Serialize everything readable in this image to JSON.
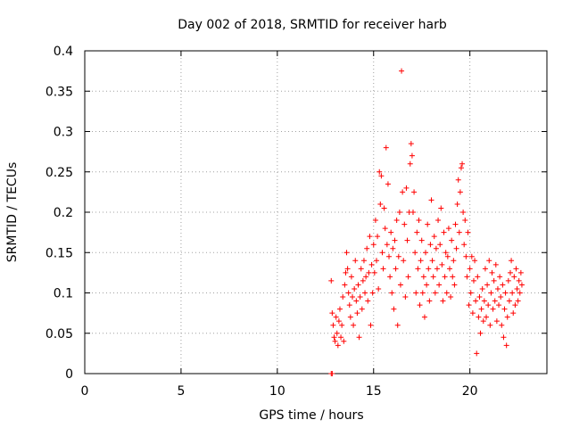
{
  "chart_data": {
    "type": "scatter",
    "title": "Day 002 of 2018, SRMTID for receiver harb",
    "xlabel": "GPS time / hours",
    "ylabel": "SRMTID / TECUs",
    "xlim": [
      0,
      24
    ],
    "ylim": [
      0,
      0.4
    ],
    "xticks": [
      0,
      5,
      10,
      15,
      20
    ],
    "xtick_labels": [
      "0",
      "5",
      "10",
      "15",
      "20"
    ],
    "yticks": [
      0,
      0.05,
      0.1,
      0.15,
      0.2,
      0.25,
      0.3,
      0.35,
      0.4
    ],
    "ytick_labels": [
      "0",
      "0.05",
      "0.1",
      "0.15",
      "0.2",
      "0.25",
      "0.3",
      "0.35",
      "0.4"
    ],
    "grid": true,
    "marker": "+",
    "color": "#ff0000",
    "series": [
      {
        "name": "SRMTID",
        "points": [
          [
            12.8,
            0.0
          ],
          [
            12.85,
            0.0
          ],
          [
            12.8,
            0.115
          ],
          [
            12.85,
            0.075
          ],
          [
            12.9,
            0.06
          ],
          [
            12.95,
            0.045
          ],
          [
            13.0,
            0.04
          ],
          [
            13.05,
            0.07
          ],
          [
            13.1,
            0.05
          ],
          [
            13.15,
            0.035
          ],
          [
            13.2,
            0.065
          ],
          [
            13.25,
            0.08
          ],
          [
            13.3,
            0.045
          ],
          [
            13.35,
            0.06
          ],
          [
            13.4,
            0.095
          ],
          [
            13.45,
            0.04
          ],
          [
            13.5,
            0.11
          ],
          [
            13.55,
            0.125
          ],
          [
            13.6,
            0.15
          ],
          [
            13.65,
            0.13
          ],
          [
            13.7,
            0.1
          ],
          [
            13.75,
            0.085
          ],
          [
            13.8,
            0.07
          ],
          [
            13.85,
            0.12
          ],
          [
            13.9,
            0.095
          ],
          [
            13.95,
            0.06
          ],
          [
            14.0,
            0.105
          ],
          [
            14.05,
            0.14
          ],
          [
            14.1,
            0.09
          ],
          [
            14.15,
            0.075
          ],
          [
            14.2,
            0.11
          ],
          [
            14.25,
            0.045
          ],
          [
            14.3,
            0.095
          ],
          [
            14.35,
            0.13
          ],
          [
            14.4,
            0.08
          ],
          [
            14.45,
            0.115
          ],
          [
            14.5,
            0.14
          ],
          [
            14.55,
            0.1
          ],
          [
            14.6,
            0.12
          ],
          [
            14.65,
            0.155
          ],
          [
            14.7,
            0.09
          ],
          [
            14.75,
            0.125
          ],
          [
            14.8,
            0.17
          ],
          [
            14.85,
            0.06
          ],
          [
            14.9,
            0.135
          ],
          [
            14.95,
            0.1
          ],
          [
            15.0,
            0.16
          ],
          [
            15.05,
            0.125
          ],
          [
            15.1,
            0.19
          ],
          [
            15.15,
            0.14
          ],
          [
            15.2,
            0.17
          ],
          [
            15.25,
            0.105
          ],
          [
            15.3,
            0.25
          ],
          [
            15.35,
            0.21
          ],
          [
            15.4,
            0.245
          ],
          [
            15.45,
            0.15
          ],
          [
            15.5,
            0.13
          ],
          [
            15.55,
            0.205
          ],
          [
            15.6,
            0.18
          ],
          [
            15.65,
            0.28
          ],
          [
            15.7,
            0.16
          ],
          [
            15.75,
            0.235
          ],
          [
            15.8,
            0.145
          ],
          [
            15.85,
            0.12
          ],
          [
            15.9,
            0.175
          ],
          [
            15.95,
            0.1
          ],
          [
            16.0,
            0.155
          ],
          [
            16.05,
            0.08
          ],
          [
            16.1,
            0.165
          ],
          [
            16.15,
            0.13
          ],
          [
            16.2,
            0.19
          ],
          [
            16.25,
            0.06
          ],
          [
            16.3,
            0.145
          ],
          [
            16.35,
            0.2
          ],
          [
            16.4,
            0.11
          ],
          [
            16.45,
            0.375
          ],
          [
            16.5,
            0.225
          ],
          [
            16.55,
            0.14
          ],
          [
            16.6,
            0.185
          ],
          [
            16.65,
            0.095
          ],
          [
            16.7,
            0.23
          ],
          [
            16.75,
            0.165
          ],
          [
            16.8,
            0.12
          ],
          [
            16.85,
            0.2
          ],
          [
            16.9,
            0.26
          ],
          [
            16.95,
            0.285
          ],
          [
            17.0,
            0.27
          ],
          [
            17.05,
            0.2
          ],
          [
            17.1,
            0.225
          ],
          [
            17.15,
            0.15
          ],
          [
            17.2,
            0.1
          ],
          [
            17.25,
            0.175
          ],
          [
            17.3,
            0.13
          ],
          [
            17.35,
            0.19
          ],
          [
            17.4,
            0.085
          ],
          [
            17.45,
            0.14
          ],
          [
            17.5,
            0.165
          ],
          [
            17.55,
            0.1
          ],
          [
            17.6,
            0.12
          ],
          [
            17.65,
            0.07
          ],
          [
            17.7,
            0.15
          ],
          [
            17.75,
            0.11
          ],
          [
            17.8,
            0.185
          ],
          [
            17.85,
            0.13
          ],
          [
            17.9,
            0.09
          ],
          [
            17.95,
            0.16
          ],
          [
            18.0,
            0.215
          ],
          [
            18.05,
            0.14
          ],
          [
            18.1,
            0.12
          ],
          [
            18.15,
            0.17
          ],
          [
            18.2,
            0.1
          ],
          [
            18.25,
            0.155
          ],
          [
            18.3,
            0.13
          ],
          [
            18.35,
            0.19
          ],
          [
            18.4,
            0.11
          ],
          [
            18.45,
            0.16
          ],
          [
            18.5,
            0.205
          ],
          [
            18.55,
            0.135
          ],
          [
            18.6,
            0.09
          ],
          [
            18.65,
            0.175
          ],
          [
            18.7,
            0.12
          ],
          [
            18.75,
            0.15
          ],
          [
            18.8,
            0.1
          ],
          [
            18.85,
            0.145
          ],
          [
            18.9,
            0.18
          ],
          [
            18.95,
            0.13
          ],
          [
            19.0,
            0.095
          ],
          [
            19.05,
            0.165
          ],
          [
            19.1,
            0.12
          ],
          [
            19.15,
            0.14
          ],
          [
            19.2,
            0.11
          ],
          [
            19.25,
            0.185
          ],
          [
            19.3,
            0.155
          ],
          [
            19.35,
            0.21
          ],
          [
            19.4,
            0.24
          ],
          [
            19.45,
            0.175
          ],
          [
            19.5,
            0.225
          ],
          [
            19.55,
            0.255
          ],
          [
            19.6,
            0.26
          ],
          [
            19.65,
            0.2
          ],
          [
            19.7,
            0.16
          ],
          [
            19.75,
            0.19
          ],
          [
            19.8,
            0.145
          ],
          [
            19.85,
            0.12
          ],
          [
            19.9,
            0.175
          ],
          [
            19.95,
            0.085
          ],
          [
            20.0,
            0.13
          ],
          [
            20.05,
            0.1
          ],
          [
            20.1,
            0.145
          ],
          [
            20.15,
            0.075
          ],
          [
            20.2,
            0.115
          ],
          [
            20.25,
            0.14
          ],
          [
            20.3,
            0.09
          ],
          [
            20.35,
            0.025
          ],
          [
            20.4,
            0.12
          ],
          [
            20.45,
            0.07
          ],
          [
            20.5,
            0.095
          ],
          [
            20.55,
            0.05
          ],
          [
            20.6,
            0.08
          ],
          [
            20.65,
            0.105
          ],
          [
            20.7,
            0.065
          ],
          [
            20.75,
            0.09
          ],
          [
            20.8,
            0.13
          ],
          [
            20.85,
            0.07
          ],
          [
            20.9,
            0.11
          ],
          [
            20.95,
            0.085
          ],
          [
            21.0,
            0.14
          ],
          [
            21.05,
            0.06
          ],
          [
            21.1,
            0.1
          ],
          [
            21.15,
            0.125
          ],
          [
            21.2,
            0.08
          ],
          [
            21.25,
            0.115
          ],
          [
            21.3,
            0.09
          ],
          [
            21.35,
            0.135
          ],
          [
            21.4,
            0.065
          ],
          [
            21.45,
            0.105
          ],
          [
            21.5,
            0.085
          ],
          [
            21.55,
            0.12
          ],
          [
            21.6,
            0.095
          ],
          [
            21.65,
            0.06
          ],
          [
            21.7,
            0.11
          ],
          [
            21.75,
            0.045
          ],
          [
            21.8,
            0.08
          ],
          [
            21.85,
            0.1
          ],
          [
            21.9,
            0.035
          ],
          [
            21.95,
            0.07
          ],
          [
            22.0,
            0.115
          ],
          [
            22.05,
            0.09
          ],
          [
            22.1,
            0.125
          ],
          [
            22.15,
            0.14
          ],
          [
            22.2,
            0.1
          ],
          [
            22.25,
            0.075
          ],
          [
            22.3,
            0.12
          ],
          [
            22.35,
            0.085
          ],
          [
            22.4,
            0.13
          ],
          [
            22.45,
            0.105
          ],
          [
            22.5,
            0.09
          ],
          [
            22.55,
            0.115
          ],
          [
            22.6,
            0.1
          ],
          [
            22.65,
            0.125
          ],
          [
            22.7,
            0.11
          ]
        ]
      }
    ]
  }
}
